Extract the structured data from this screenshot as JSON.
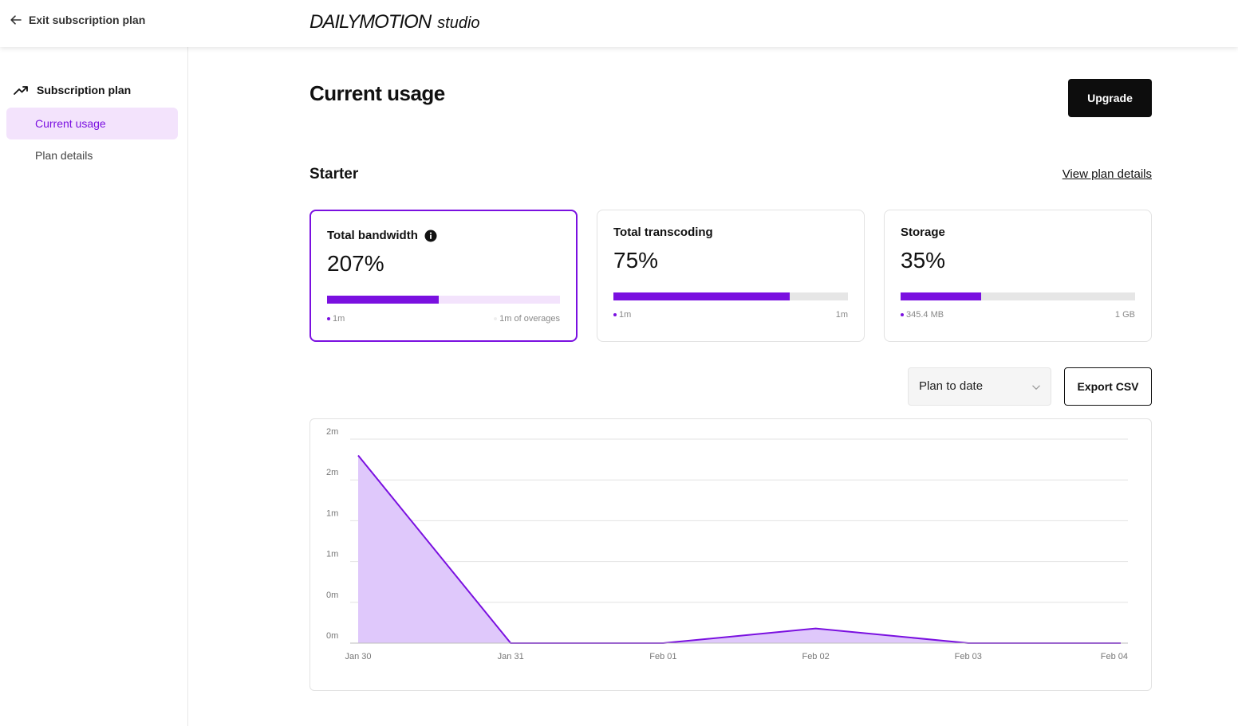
{
  "header": {
    "exit_label": "Exit subscription plan",
    "logo_main": "DAILYMOTION",
    "logo_sub": "studio"
  },
  "sidebar": {
    "section_label": "Subscription plan",
    "items": [
      {
        "label": "Current usage",
        "active": true
      },
      {
        "label": "Plan details",
        "active": false
      }
    ]
  },
  "main": {
    "title": "Current usage",
    "upgrade_label": "Upgrade",
    "plan_name": "Starter",
    "view_plan_label": "View plan details",
    "cards": [
      {
        "title": "Total bandwidth",
        "value": "207%",
        "fill_fraction": 0.48,
        "left_label": "1m",
        "right_label": "1m of overages",
        "selected": true,
        "has_info": true
      },
      {
        "title": "Total transcoding",
        "value": "75%",
        "fill_fraction": 0.75,
        "left_label": "1m",
        "right_label": "1m",
        "selected": false,
        "has_info": false
      },
      {
        "title": "Storage",
        "value": "35%",
        "fill_fraction": 0.345,
        "left_label": "345.4 MB",
        "right_label": "1 GB",
        "selected": false,
        "has_info": false
      }
    ],
    "range_select": "Plan to date",
    "export_label": "Export CSV"
  },
  "colors": {
    "accent": "#7a10e0",
    "accent_light": "#f3e3fc",
    "area_fill": "#dfc8fb"
  },
  "chart_data": {
    "type": "area",
    "x": [
      "Jan 30",
      "Jan 31",
      "Feb 01",
      "Feb 02",
      "Feb 03",
      "Feb 04"
    ],
    "values": [
      2.3,
      0,
      0,
      0.18,
      0,
      0
    ],
    "y_tick_labels": [
      "0m",
      "0m",
      "1m",
      "1m",
      "2m",
      "2m"
    ],
    "y_tick_values": [
      0,
      0.5,
      1,
      1.5,
      2,
      2.5
    ],
    "ylim": [
      0,
      2.5
    ],
    "grid": true
  }
}
